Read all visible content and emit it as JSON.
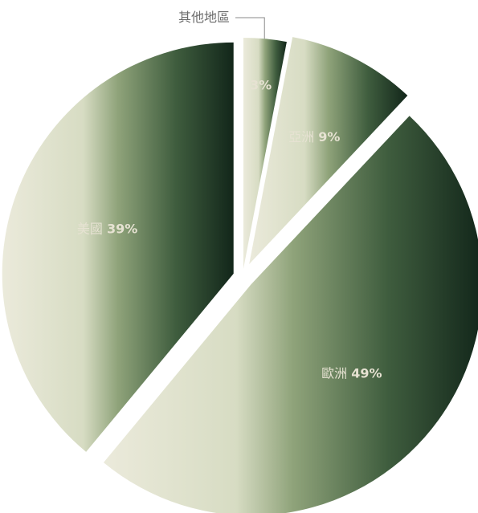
{
  "chart_data": {
    "type": "pie",
    "title": "",
    "slices": [
      {
        "name": "其他地區",
        "value": 3,
        "pct_label": "3%",
        "label_outside": true
      },
      {
        "name": "亞洲",
        "value": 9,
        "pct_label": "9%"
      },
      {
        "name": "歐洲",
        "value": 49,
        "pct_label": "49%"
      },
      {
        "name": "美國",
        "value": 39,
        "pct_label": "39%"
      }
    ],
    "legend": "none",
    "colors": {
      "light": "#ebeadb",
      "mid": "#8fa37a",
      "dark": "#12261a",
      "text_light": "#e6e2d2",
      "text_outside": "#6b6b6b"
    }
  }
}
